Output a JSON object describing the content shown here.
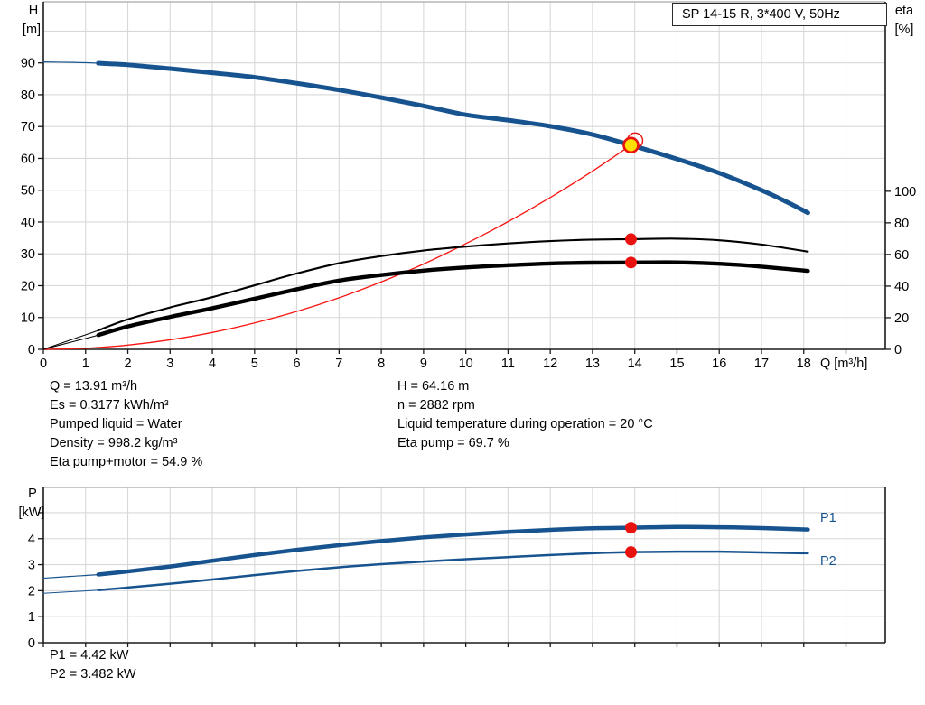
{
  "title_box": {
    "label": "SP 14-15 R, 3*400 V, 50Hz"
  },
  "axes_labels": {
    "h_name": "H",
    "h_unit": "[m]",
    "eta_name": "eta",
    "eta_unit": "[%]",
    "q_label": "Q [m³/h]",
    "p_name": "P",
    "p_unit": "[kW]"
  },
  "legend": {
    "p1": "P1",
    "p2": "P2"
  },
  "annotations": {
    "left": [
      "Q = 13.91 m³/h",
      "Es = 0.3177 kWh/m³",
      "Pumped liquid = Water",
      "Density = 998.2 kg/m³",
      "Eta pump+motor = 54.9 %"
    ],
    "right": [
      "H = 64.16 m",
      "n = 2882 rpm",
      "Liquid temperature during operation = 20 °C",
      "Eta pump = 69.7 %"
    ],
    "bottom": [
      "P1 = 4.42 kW",
      "P2 = 3.482 kW"
    ]
  },
  "colors": {
    "blue": "#17538f",
    "black": "#000000",
    "red": "#e8120e",
    "red_line": "#f61511",
    "yellow": "#ffdf00",
    "grid": "#d8d8d8",
    "frame_gray": "#a8a8a8",
    "spine": "#1a1a1a"
  },
  "chart_data": [
    {
      "id": "hq",
      "name": "hq-eta-chart",
      "type": "line",
      "title": "SP 14-15 R, 3*400 V, 50Hz",
      "xlabel": "Q [m³/h]",
      "x": {
        "min": 0,
        "max": 19.93,
        "ticks_all": [
          0,
          1,
          2,
          3,
          4,
          5,
          6,
          7,
          8,
          9,
          10,
          11,
          12,
          13,
          14,
          15,
          16,
          17,
          18,
          19
        ],
        "ticks_labeled": [
          0,
          1,
          2,
          3,
          4,
          5,
          6,
          7,
          8,
          9,
          10,
          11,
          12,
          13,
          14,
          15,
          16,
          17,
          18
        ],
        "show_labels": true
      },
      "y_left": {
        "label": "H [m]",
        "min": 0,
        "max": 109.2,
        "ticks": [
          0,
          10,
          20,
          30,
          40,
          50,
          60,
          70,
          80,
          90
        ],
        "grid_values": [
          10,
          20,
          30,
          40,
          50,
          60,
          70,
          80,
          90,
          100
        ]
      },
      "y_right": {
        "label": "eta [%]",
        "min": 0,
        "max": 219.8,
        "ticks": [
          0,
          20,
          40,
          60,
          80,
          100
        ]
      },
      "series": [
        {
          "slug": "system-curve",
          "name": "System curve (duty line)",
          "axis": "left",
          "color_key": "red_line",
          "width": 1.3,
          "points": [
            [
              0,
              0
            ],
            [
              1,
              0.33
            ],
            [
              2,
              1.33
            ],
            [
              3,
              3.0
            ],
            [
              4,
              5.3
            ],
            [
              5,
              8.3
            ],
            [
              6,
              11.9
            ],
            [
              7,
              16.2
            ],
            [
              8,
              21.2
            ],
            [
              9,
              26.8
            ],
            [
              10,
              33.2
            ],
            [
              11,
              40.1
            ],
            [
              12,
              47.7
            ],
            [
              13,
              56.0
            ],
            [
              13.91,
              64.16
            ]
          ]
        },
        {
          "slug": "eta-pump-curve",
          "name": "Eta pump",
          "axis": "right",
          "color_key": "black",
          "width": 2.1,
          "thin_width": 1.0,
          "thin_until": 1.3,
          "points": [
            [
              0,
              0
            ],
            [
              0.65,
              6
            ],
            [
              1.3,
              12
            ],
            [
              2,
              19
            ],
            [
              3,
              26.5
            ],
            [
              4,
              33
            ],
            [
              5,
              40.5
            ],
            [
              6,
              48
            ],
            [
              7,
              54.5
            ],
            [
              8,
              59
            ],
            [
              9,
              62.5
            ],
            [
              10,
              65
            ],
            [
              11,
              67
            ],
            [
              12,
              68.5
            ],
            [
              13,
              69.4
            ],
            [
              13.91,
              69.7
            ],
            [
              15,
              70
            ],
            [
              16,
              69
            ],
            [
              17,
              66.3
            ],
            [
              18.1,
              61.8
            ]
          ]
        },
        {
          "slug": "eta-pump-motor-curve",
          "name": "Eta pump+motor",
          "axis": "right",
          "color_key": "black",
          "width": 4.4,
          "thin_width": 1.0,
          "thin_until": 1.3,
          "points": [
            [
              0,
              0
            ],
            [
              0.65,
              4.5
            ],
            [
              1.3,
              9
            ],
            [
              2,
              14.5
            ],
            [
              3,
              20.5
            ],
            [
              4,
              26
            ],
            [
              5,
              32
            ],
            [
              6,
              38
            ],
            [
              7,
              43.5
            ],
            [
              8,
              47
            ],
            [
              9,
              49.8
            ],
            [
              10,
              51.8
            ],
            [
              11,
              53.2
            ],
            [
              12,
              54.3
            ],
            [
              13,
              54.8
            ],
            [
              13.91,
              54.9
            ],
            [
              15,
              55
            ],
            [
              16,
              54.1
            ],
            [
              17,
              52.3
            ],
            [
              18.1,
              49.6
            ]
          ]
        },
        {
          "slug": "h-curve",
          "name": "H curve",
          "axis": "left",
          "color_key": "blue",
          "width": 5.0,
          "thin_width": 1.2,
          "thin_until": 1.3,
          "points": [
            [
              0,
              90.3
            ],
            [
              0.7,
              90.15
            ],
            [
              1.3,
              89.9
            ],
            [
              2,
              89.4
            ],
            [
              3,
              88.2
            ],
            [
              4,
              86.9
            ],
            [
              5,
              85.5
            ],
            [
              6,
              83.6
            ],
            [
              7,
              81.5
            ],
            [
              8,
              79.1
            ],
            [
              9,
              76.5
            ],
            [
              10,
              73.7
            ],
            [
              11,
              72.0
            ],
            [
              12,
              70.1
            ],
            [
              13,
              67.5
            ],
            [
              13.91,
              64.16
            ],
            [
              15,
              59.8
            ],
            [
              16,
              55.4
            ],
            [
              17,
              50.0
            ],
            [
              17.6,
              46.3
            ],
            [
              18.1,
              42.9
            ]
          ]
        }
      ],
      "markers": [
        {
          "kind": "duty",
          "q": 13.91,
          "v": 64.16,
          "axis": "left",
          "name": "duty-point-marker"
        },
        {
          "kind": "dot",
          "q": 13.91,
          "v": 69.7,
          "axis": "right",
          "name": "eta-pump-point"
        },
        {
          "kind": "dot",
          "q": 13.91,
          "v": 54.9,
          "axis": "right",
          "name": "eta-pump-motor-point"
        }
      ]
    },
    {
      "id": "power",
      "name": "power-chart",
      "type": "line",
      "xlabel": "",
      "x": {
        "min": 0,
        "max": 19.93,
        "ticks_all": [
          0,
          1,
          2,
          3,
          4,
          5,
          6,
          7,
          8,
          9,
          10,
          11,
          12,
          13,
          14,
          15,
          16,
          17,
          18,
          19
        ],
        "ticks_labeled": [],
        "show_labels": false
      },
      "y_left": {
        "label": "P [kW]",
        "min": 0,
        "max": 5.97,
        "ticks": [
          0,
          1,
          2,
          3,
          4
        ],
        "ticks_all": [
          0,
          1,
          2,
          3,
          4,
          5
        ],
        "grid_values": [
          1,
          2,
          3,
          4,
          5
        ]
      },
      "series": [
        {
          "slug": "p2-curve",
          "name": "P2",
          "axis": "left",
          "color_key": "blue",
          "width": 2.5,
          "thin_width": 1.0,
          "thin_until": 1.3,
          "points": [
            [
              0,
              1.9
            ],
            [
              0.65,
              1.96
            ],
            [
              1.3,
              2.02
            ],
            [
              2,
              2.12
            ],
            [
              3,
              2.27
            ],
            [
              4,
              2.43
            ],
            [
              5,
              2.6
            ],
            [
              6,
              2.76
            ],
            [
              7,
              2.9
            ],
            [
              8,
              3.02
            ],
            [
              9,
              3.12
            ],
            [
              10,
              3.21
            ],
            [
              11,
              3.29
            ],
            [
              12,
              3.37
            ],
            [
              13,
              3.44
            ],
            [
              13.91,
              3.482
            ],
            [
              15,
              3.5
            ],
            [
              16,
              3.5
            ],
            [
              17,
              3.47
            ],
            [
              18.1,
              3.44
            ]
          ]
        },
        {
          "slug": "p1-curve",
          "name": "P1",
          "axis": "left",
          "color_key": "blue",
          "width": 4.5,
          "thin_width": 1.2,
          "thin_until": 1.3,
          "points": [
            [
              0,
              2.48
            ],
            [
              0.65,
              2.55
            ],
            [
              1.3,
              2.62
            ],
            [
              2,
              2.74
            ],
            [
              3,
              2.93
            ],
            [
              4,
              3.15
            ],
            [
              5,
              3.37
            ],
            [
              6,
              3.57
            ],
            [
              7,
              3.75
            ],
            [
              8,
              3.91
            ],
            [
              9,
              4.05
            ],
            [
              10,
              4.16
            ],
            [
              11,
              4.26
            ],
            [
              12,
              4.34
            ],
            [
              13,
              4.4
            ],
            [
              13.91,
              4.42
            ],
            [
              15,
              4.45
            ],
            [
              16,
              4.44
            ],
            [
              17,
              4.41
            ],
            [
              18.1,
              4.35
            ]
          ]
        }
      ],
      "markers": [
        {
          "kind": "dot",
          "q": 13.91,
          "v": 4.42,
          "axis": "left",
          "name": "p1-point"
        },
        {
          "kind": "dot",
          "q": 13.91,
          "v": 3.482,
          "axis": "left",
          "name": "p2-point"
        }
      ]
    }
  ]
}
